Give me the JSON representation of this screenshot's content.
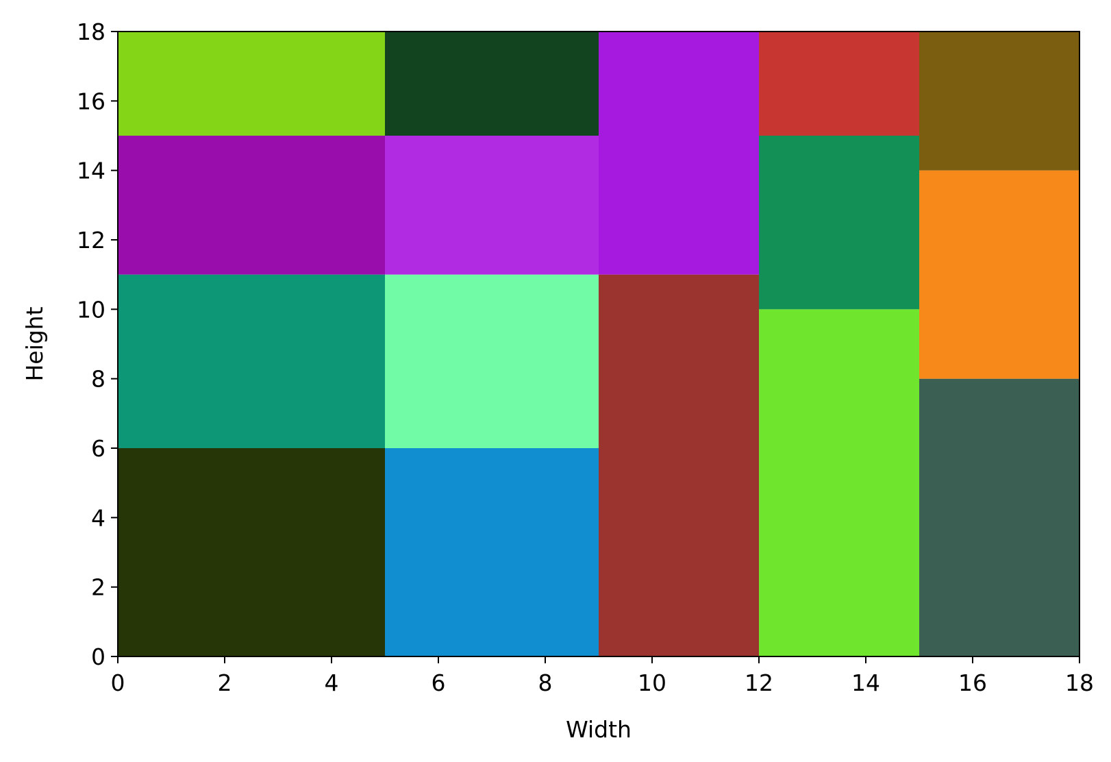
{
  "chart_data": {
    "type": "treemap",
    "xlabel": "Width",
    "ylabel": "Height",
    "xlim": [
      0,
      18
    ],
    "ylim": [
      0,
      18
    ],
    "xticks": [
      "0",
      "2",
      "4",
      "6",
      "8",
      "10",
      "12",
      "14",
      "16",
      "18"
    ],
    "yticks": [
      "0",
      "2",
      "4",
      "6",
      "8",
      "10",
      "12",
      "14",
      "16",
      "18"
    ],
    "grid": false,
    "rects": [
      {
        "x0": 0,
        "x1": 5,
        "y0": 0,
        "y1": 6,
        "color": "#263607"
      },
      {
        "x0": 0,
        "x1": 5,
        "y0": 6,
        "y1": 11,
        "color": "#0d9776"
      },
      {
        "x0": 0,
        "x1": 5,
        "y0": 11,
        "y1": 15,
        "color": "#980dab"
      },
      {
        "x0": 0,
        "x1": 5,
        "y0": 15,
        "y1": 18,
        "color": "#84d517"
      },
      {
        "x0": 5,
        "x1": 9,
        "y0": 0,
        "y1": 6,
        "color": "#108ecf"
      },
      {
        "x0": 5,
        "x1": 9,
        "y0": 6,
        "y1": 11,
        "color": "#72fba7"
      },
      {
        "x0": 5,
        "x1": 9,
        "y0": 11,
        "y1": 15,
        "color": "#b02be2"
      },
      {
        "x0": 5,
        "x1": 9,
        "y0": 15,
        "y1": 18,
        "color": "#12441f"
      },
      {
        "x0": 9,
        "x1": 12,
        "y0": 0,
        "y1": 11,
        "color": "#9b342e"
      },
      {
        "x0": 9,
        "x1": 12,
        "y0": 11,
        "y1": 18,
        "color": "#a619de"
      },
      {
        "x0": 12,
        "x1": 15,
        "y0": 0,
        "y1": 10,
        "color": "#70e52e"
      },
      {
        "x0": 12,
        "x1": 15,
        "y0": 10,
        "y1": 15,
        "color": "#139055"
      },
      {
        "x0": 12,
        "x1": 15,
        "y0": 15,
        "y1": 18,
        "color": "#c73631"
      },
      {
        "x0": 15,
        "x1": 18,
        "y0": 0,
        "y1": 8,
        "color": "#3b5f53"
      },
      {
        "x0": 15,
        "x1": 18,
        "y0": 8,
        "y1": 14,
        "color": "#f7881a"
      },
      {
        "x0": 15,
        "x1": 18,
        "y0": 14,
        "y1": 18,
        "color": "#7b5e10"
      }
    ]
  }
}
